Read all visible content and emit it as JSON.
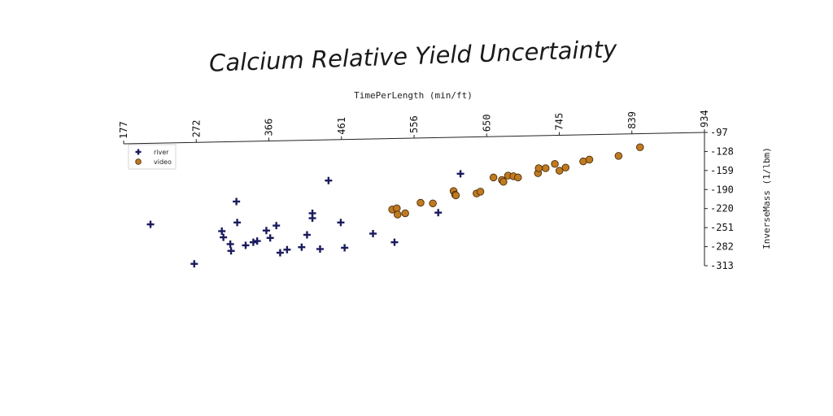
{
  "chart_data": {
    "type": "scatter",
    "title": "Calcium Relative Yield Uncertainty",
    "xlabel": "TimePerLength (min/ft)",
    "ylabel": "InverseMass (1/lbm)",
    "xlim": [
      177,
      934
    ],
    "ylim": [
      -313,
      -97
    ],
    "xticks": [
      "177",
      "272",
      "366",
      "461",
      "556",
      "650",
      "745",
      "839",
      "934"
    ],
    "yticks": [
      "-97",
      "-128",
      "-159",
      "-190",
      "-220",
      "-251",
      "-282",
      "-313"
    ],
    "legend_position": "top-left",
    "series": [
      {
        "name": "river",
        "color": "#1b1b5e",
        "marker": "plus",
        "points": [
          [
            212,
            -246
          ],
          [
            269,
            -310
          ],
          [
            305,
            -257
          ],
          [
            307,
            -267
          ],
          [
            316,
            -278
          ],
          [
            317,
            -289
          ],
          [
            324,
            -209
          ],
          [
            325,
            -243
          ],
          [
            336,
            -280
          ],
          [
            346,
            -275
          ],
          [
            351,
            -273
          ],
          [
            363,
            -256
          ],
          [
            368,
            -268
          ],
          [
            376,
            -248
          ],
          [
            381,
            -292
          ],
          [
            390,
            -287
          ],
          [
            409,
            -283
          ],
          [
            416,
            -263
          ],
          [
            423,
            -228
          ],
          [
            423,
            -236
          ],
          [
            433,
            -286
          ],
          [
            444,
            -175
          ],
          [
            460,
            -243
          ],
          [
            465,
            -284
          ],
          [
            502,
            -261
          ],
          [
            530,
            -275
          ],
          [
            587,
            -227
          ],
          [
            616,
            -164
          ]
        ]
      },
      {
        "name": "video",
        "color": "#c07a22",
        "marker": "circle",
        "points": [
          [
            527,
            -222
          ],
          [
            533,
            -220
          ],
          [
            534,
            -230
          ],
          [
            544,
            -228
          ],
          [
            564,
            -211
          ],
          [
            580,
            -212
          ],
          [
            607,
            -192
          ],
          [
            609,
            -198
          ],
          [
            610,
            -199
          ],
          [
            637,
            -196
          ],
          [
            642,
            -193
          ],
          [
            659,
            -170
          ],
          [
            670,
            -174
          ],
          [
            672,
            -177
          ],
          [
            678,
            -167
          ],
          [
            685,
            -168
          ],
          [
            691,
            -170
          ],
          [
            717,
            -163
          ],
          [
            718,
            -155
          ],
          [
            727,
            -155
          ],
          [
            739,
            -148
          ],
          [
            745,
            -159
          ],
          [
            753,
            -154
          ],
          [
            776,
            -144
          ],
          [
            784,
            -141
          ],
          [
            822,
            -135
          ],
          [
            850,
            -121
          ]
        ]
      }
    ]
  }
}
